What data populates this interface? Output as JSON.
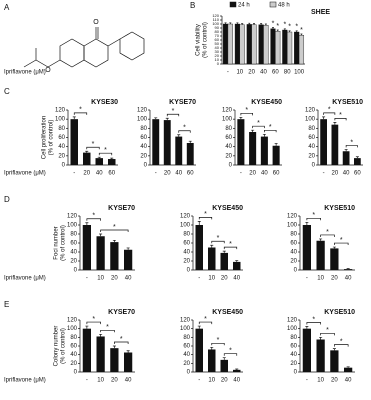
{
  "structure_panel": {
    "panel": "A"
  },
  "chart_data": [
    {
      "type": "grouped-bar",
      "panel": "B",
      "title": "SHEE",
      "ylabel": [
        "Cell viability",
        "(% of control)"
      ],
      "xlabel": "Ipriflavone (μM)",
      "categories": [
        "-",
        "10",
        "20",
        "40",
        "60",
        "80",
        "100"
      ],
      "series": [
        {
          "name": "24 h",
          "color": "#111111",
          "values": [
            100,
            100,
            99,
            98,
            88,
            85,
            80
          ],
          "errors": [
            3,
            3,
            3,
            3,
            3,
            3,
            3
          ],
          "annotations": [
            null,
            null,
            null,
            null,
            "*",
            "*",
            "*"
          ]
        },
        {
          "name": "48 h",
          "color": "#cccccc",
          "values": [
            100,
            98,
            98,
            97,
            82,
            80,
            72
          ],
          "errors": [
            3,
            3,
            3,
            3,
            3,
            3,
            3
          ],
          "annotations": [
            null,
            null,
            null,
            null,
            "*",
            "*",
            "*"
          ]
        }
      ],
      "ylim": [
        0,
        120
      ],
      "yticks": [
        0,
        10,
        20,
        30,
        40,
        50,
        60,
        70,
        80,
        90,
        100,
        110,
        120
      ]
    },
    {
      "type": "bar",
      "panel": "C",
      "title": "KYSE30",
      "ylabel": [
        "Cell proliferation",
        "(% of control)"
      ],
      "xlabel": "Ipriflavone (μM)",
      "categories": [
        "-",
        "20",
        "40",
        "60"
      ],
      "values": [
        100,
        27,
        15,
        13
      ],
      "errors": [
        5,
        3,
        2,
        2
      ],
      "color": "#111111",
      "significance": [
        {
          "from": "-",
          "to": "20",
          "label": "*"
        },
        {
          "from": "20",
          "to": "40",
          "label": "*"
        },
        {
          "from": "40",
          "to": "60",
          "label": "*"
        }
      ],
      "ylim": [
        0,
        120
      ],
      "yticks": [
        0,
        20,
        40,
        60,
        80,
        100,
        120
      ]
    },
    {
      "type": "bar",
      "title": "KYSE70",
      "categories": [
        "-",
        "20",
        "40",
        "60"
      ],
      "values": [
        100,
        98,
        62,
        48
      ],
      "errors": [
        3,
        4,
        4,
        4
      ],
      "color": "#111111",
      "significance": [
        {
          "from": "20",
          "to": "40",
          "label": "*"
        },
        {
          "from": "40",
          "to": "60",
          "label": "*"
        }
      ],
      "ylim": [
        0,
        120
      ],
      "yticks": [
        0,
        20,
        40,
        60,
        80,
        100,
        120
      ]
    },
    {
      "type": "bar",
      "title": "KYSE450",
      "categories": [
        "-",
        "20",
        "40",
        "60"
      ],
      "values": [
        100,
        72,
        62,
        42
      ],
      "errors": [
        4,
        4,
        5,
        5
      ],
      "color": "#111111",
      "significance": [
        {
          "from": "-",
          "to": "20",
          "label": "*"
        },
        {
          "from": "20",
          "to": "40",
          "label": "*"
        },
        {
          "from": "40",
          "to": "60",
          "label": "*"
        }
      ],
      "ylim": [
        0,
        120
      ],
      "yticks": [
        0,
        20,
        40,
        60,
        80,
        100,
        120
      ]
    },
    {
      "type": "bar",
      "title": "KYSE510",
      "categories": [
        "-",
        "20",
        "40",
        "60"
      ],
      "values": [
        100,
        88,
        30,
        15
      ],
      "errors": [
        5,
        5,
        4,
        3
      ],
      "color": "#111111",
      "significance": [
        {
          "from": "-",
          "to": "20",
          "label": "*"
        },
        {
          "from": "20",
          "to": "40",
          "label": "*"
        },
        {
          "from": "40",
          "to": "60",
          "label": "*"
        }
      ],
      "ylim": [
        0,
        120
      ],
      "yticks": [
        0,
        20,
        40,
        60,
        80,
        100,
        120
      ]
    },
    {
      "type": "bar",
      "panel": "D",
      "title": "KYSE70",
      "ylabel": [
        "Foci number",
        "(% of control)"
      ],
      "xlabel": "Ipriflavone (μM)",
      "categories": [
        "-",
        "10",
        "20",
        "40"
      ],
      "values": [
        100,
        75,
        62,
        45
      ],
      "errors": [
        5,
        5,
        4,
        4
      ],
      "color": "#111111",
      "significance": [
        {
          "from": "-",
          "to": "10",
          "label": "*"
        },
        {
          "from": "10",
          "to": "40",
          "label": "*"
        }
      ],
      "ylim": [
        0,
        120
      ],
      "yticks": [
        0,
        20,
        40,
        60,
        80,
        100,
        120
      ]
    },
    {
      "type": "bar",
      "title": "KYSE450",
      "categories": [
        "-",
        "10",
        "20",
        "40"
      ],
      "values": [
        100,
        50,
        38,
        18
      ],
      "errors": [
        8,
        5,
        4,
        3
      ],
      "color": "#111111",
      "significance": [
        {
          "from": "-",
          "to": "10",
          "label": "*"
        },
        {
          "from": "10",
          "to": "20",
          "label": "*"
        },
        {
          "from": "20",
          "to": "40",
          "label": "*"
        }
      ],
      "ylim": [
        0,
        120
      ],
      "yticks": [
        0,
        20,
        40,
        60,
        80,
        100,
        120
      ]
    },
    {
      "type": "bar",
      "title": "KYSE510",
      "categories": [
        "-",
        "10",
        "20",
        "40"
      ],
      "values": [
        100,
        65,
        48,
        2
      ],
      "errors": [
        6,
        4,
        3,
        1
      ],
      "color": "#111111",
      "significance": [
        {
          "from": "-",
          "to": "10",
          "label": "*"
        },
        {
          "from": "10",
          "to": "20",
          "label": "*"
        },
        {
          "from": "20",
          "to": "40",
          "label": "*"
        }
      ],
      "ylim": [
        0,
        120
      ],
      "yticks": [
        0,
        20,
        40,
        60,
        80,
        100,
        120
      ]
    },
    {
      "type": "bar",
      "panel": "E",
      "title": "KYSE70",
      "ylabel": [
        "Colony number",
        "(% of control)"
      ],
      "xlabel": "Ipriflavone (μM)",
      "categories": [
        "-",
        "10",
        "20",
        "40"
      ],
      "values": [
        100,
        82,
        55,
        45
      ],
      "errors": [
        6,
        5,
        5,
        4
      ],
      "color": "#111111",
      "significance": [
        {
          "from": "-",
          "to": "10",
          "label": "*"
        },
        {
          "from": "10",
          "to": "20",
          "label": "*"
        },
        {
          "from": "20",
          "to": "40",
          "label": "*"
        }
      ],
      "ylim": [
        0,
        120
      ],
      "yticks": [
        0,
        20,
        40,
        60,
        80,
        100,
        120
      ]
    },
    {
      "type": "bar",
      "title": "KYSE450",
      "categories": [
        "-",
        "10",
        "20",
        "40"
      ],
      "values": [
        100,
        52,
        28,
        5
      ],
      "errors": [
        6,
        5,
        5,
        2
      ],
      "color": "#111111",
      "significance": [
        {
          "from": "-",
          "to": "10",
          "label": "*"
        },
        {
          "from": "10",
          "to": "20",
          "label": "*"
        },
        {
          "from": "20",
          "to": "40",
          "label": "*"
        }
      ],
      "ylim": [
        0,
        120
      ],
      "yticks": [
        0,
        20,
        40,
        60,
        80,
        100,
        120
      ]
    },
    {
      "type": "bar",
      "title": "KYSE510",
      "categories": [
        "-",
        "10",
        "20",
        "40"
      ],
      "values": [
        100,
        75,
        50,
        10
      ],
      "errors": [
        5,
        5,
        4,
        2
      ],
      "color": "#111111",
      "significance": [
        {
          "from": "-",
          "to": "10",
          "label": "*"
        },
        {
          "from": "10",
          "to": "20",
          "label": "*"
        },
        {
          "from": "20",
          "to": "40",
          "label": "*"
        }
      ],
      "ylim": [
        0,
        120
      ],
      "yticks": [
        0,
        20,
        40,
        60,
        80,
        100,
        120
      ]
    }
  ]
}
